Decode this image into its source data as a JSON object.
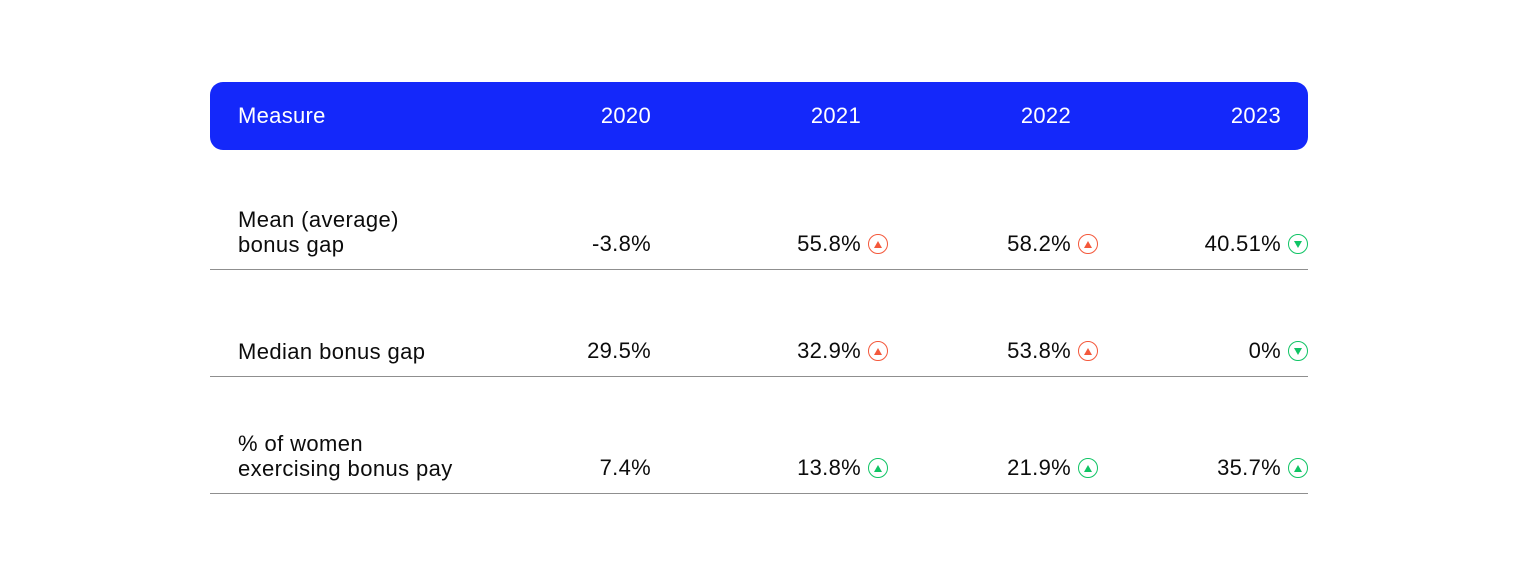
{
  "colors": {
    "background": "#FFFFFF",
    "header_bg": "#1428FA",
    "header_text": "#FFFFFF",
    "text": "#0C0C0C",
    "divider": "#8F8F8F",
    "trend_red": "#F4583B",
    "trend_green": "#10C465"
  },
  "icons": {
    "up-red": {
      "glyph": "▲",
      "shape": "filled triangle-up inside circle outline",
      "color": "#F4583B"
    },
    "up-green": {
      "glyph": "▲",
      "shape": "filled triangle-up inside circle outline",
      "color": "#10C465"
    },
    "down-green": {
      "glyph": "▼",
      "shape": "filled triangle-down inside circle outline",
      "color": "#10C465"
    }
  },
  "chart_data": {
    "type": "table",
    "columns": [
      "Measure",
      "2020",
      "2021",
      "2022",
      "2023"
    ],
    "rows": [
      {
        "measure": "Mean (average) bonus gap",
        "label_lines": [
          "Mean (average)",
          "bonus gap"
        ],
        "cells": [
          {
            "value": "-3.8%",
            "trend": "none"
          },
          {
            "value": "55.8%",
            "trend": "up-red"
          },
          {
            "value": "58.2%",
            "trend": "up-red"
          },
          {
            "value": "40.51%",
            "trend": "down-green"
          }
        ]
      },
      {
        "measure": "Median bonus gap",
        "label_lines": [
          "Median bonus gap"
        ],
        "cells": [
          {
            "value": "29.5%",
            "trend": "none"
          },
          {
            "value": "32.9%",
            "trend": "up-red"
          },
          {
            "value": "53.8%",
            "trend": "up-red"
          },
          {
            "value": "0%",
            "trend": "down-green"
          }
        ]
      },
      {
        "measure": "% of women exercising bonus pay",
        "label_lines": [
          "% of women",
          "exercising bonus pay"
        ],
        "cells": [
          {
            "value": "7.4%",
            "trend": "none"
          },
          {
            "value": "13.8%",
            "trend": "up-green"
          },
          {
            "value": "21.9%",
            "trend": "up-green"
          },
          {
            "value": "35.7%",
            "trend": "up-green"
          }
        ]
      }
    ]
  }
}
